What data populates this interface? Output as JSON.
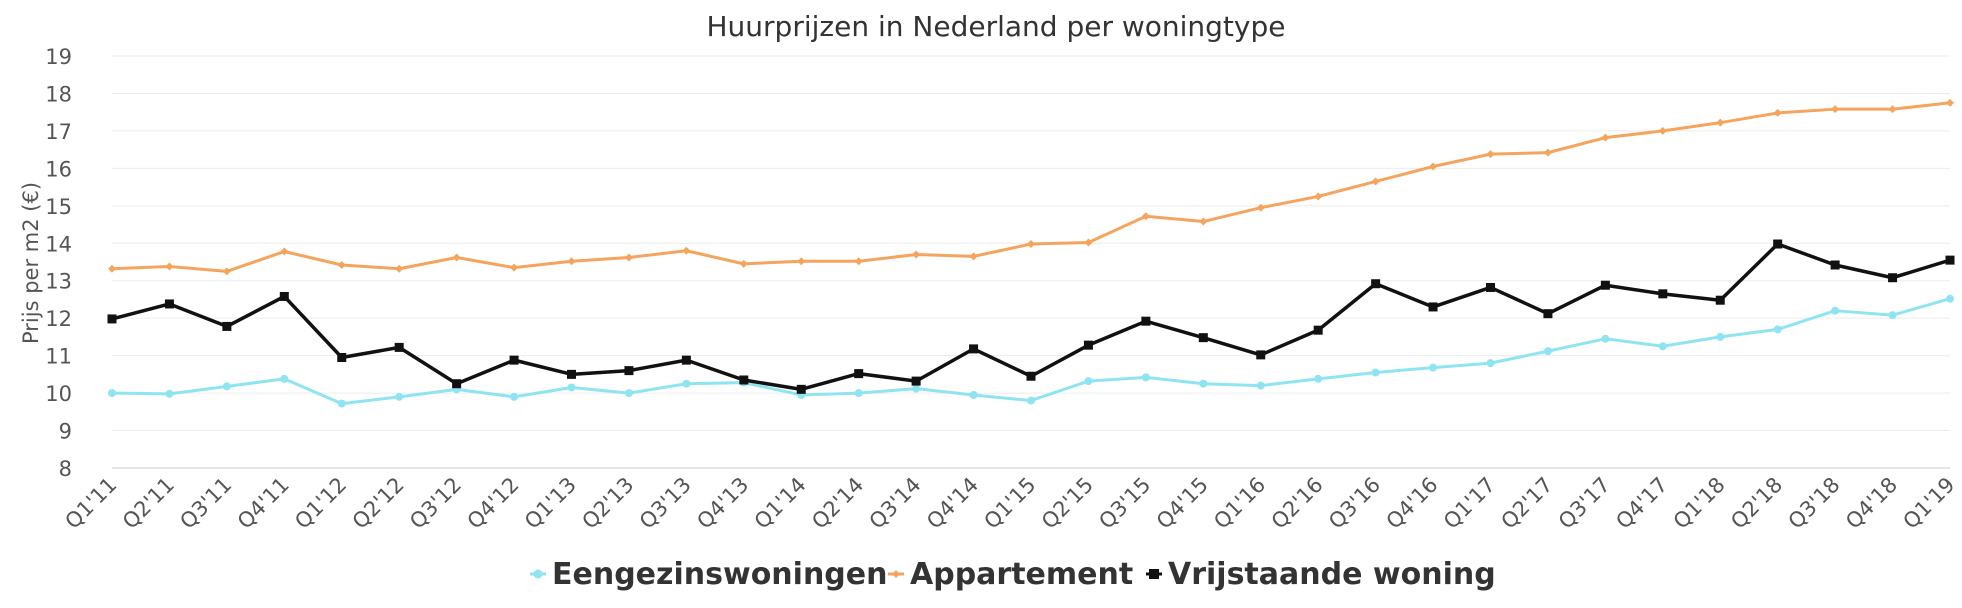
{
  "chart_data": {
    "type": "line",
    "title": "Huurprijzen in Nederland per woningtype",
    "xlabel": "",
    "ylabel": "Prijs per m2 (€)",
    "ylim": [
      8,
      19
    ],
    "yticks": [
      8,
      9,
      10,
      11,
      12,
      13,
      14,
      15,
      16,
      17,
      18,
      19
    ],
    "grid": true,
    "legend_position": "bottom-center",
    "categories": [
      "Q1'11",
      "Q2'11",
      "Q3'11",
      "Q4'11",
      "Q1'12",
      "Q2'12",
      "Q3'12",
      "Q4'12",
      "Q1'13",
      "Q2'13",
      "Q3'13",
      "Q4'13",
      "Q1'14",
      "Q2'14",
      "Q3'14",
      "Q4'14",
      "Q1'15",
      "Q2'15",
      "Q3'15",
      "Q4'15",
      "Q1'16",
      "Q2'16",
      "Q3'16",
      "Q4'16",
      "Q1'17",
      "Q2'17",
      "Q3'17",
      "Q4'17",
      "Q1'18",
      "Q2'18",
      "Q3'18",
      "Q4'18",
      "Q1'19"
    ],
    "series": [
      {
        "name": "Eengezinswoningen",
        "color": "#8ee4f0",
        "marker": "circle",
        "values": [
          10.0,
          9.98,
          10.18,
          10.38,
          9.72,
          9.9,
          10.1,
          9.9,
          10.15,
          10.0,
          10.25,
          10.28,
          9.95,
          10.0,
          10.12,
          9.95,
          9.8,
          10.32,
          10.42,
          10.25,
          10.2,
          10.38,
          10.55,
          10.68,
          10.8,
          11.12,
          11.45,
          11.25,
          11.5,
          11.7,
          12.2,
          12.08,
          12.52
        ]
      },
      {
        "name": "Appartement",
        "color": "#f4a45d",
        "marker": "diamond",
        "values": [
          13.32,
          13.38,
          13.25,
          13.78,
          13.42,
          13.32,
          13.62,
          13.35,
          13.52,
          13.62,
          13.8,
          13.45,
          13.52,
          13.52,
          13.7,
          13.65,
          13.98,
          14.02,
          14.72,
          14.58,
          14.95,
          15.25,
          15.65,
          16.05,
          16.38,
          16.42,
          16.82,
          17.0,
          17.22,
          17.48,
          17.58,
          17.58,
          17.75
        ]
      },
      {
        "name": "Vrijstaande woning",
        "color": "#111111",
        "marker": "square",
        "values": [
          11.98,
          12.38,
          11.78,
          12.58,
          10.95,
          11.22,
          10.25,
          10.88,
          10.5,
          10.6,
          10.88,
          10.35,
          10.1,
          10.52,
          10.32,
          11.18,
          10.45,
          11.28,
          11.92,
          11.48,
          11.02,
          11.68,
          12.92,
          12.3,
          12.82,
          12.12,
          12.88,
          12.65,
          12.48,
          13.98,
          13.42,
          13.08,
          13.55
        ]
      }
    ]
  }
}
